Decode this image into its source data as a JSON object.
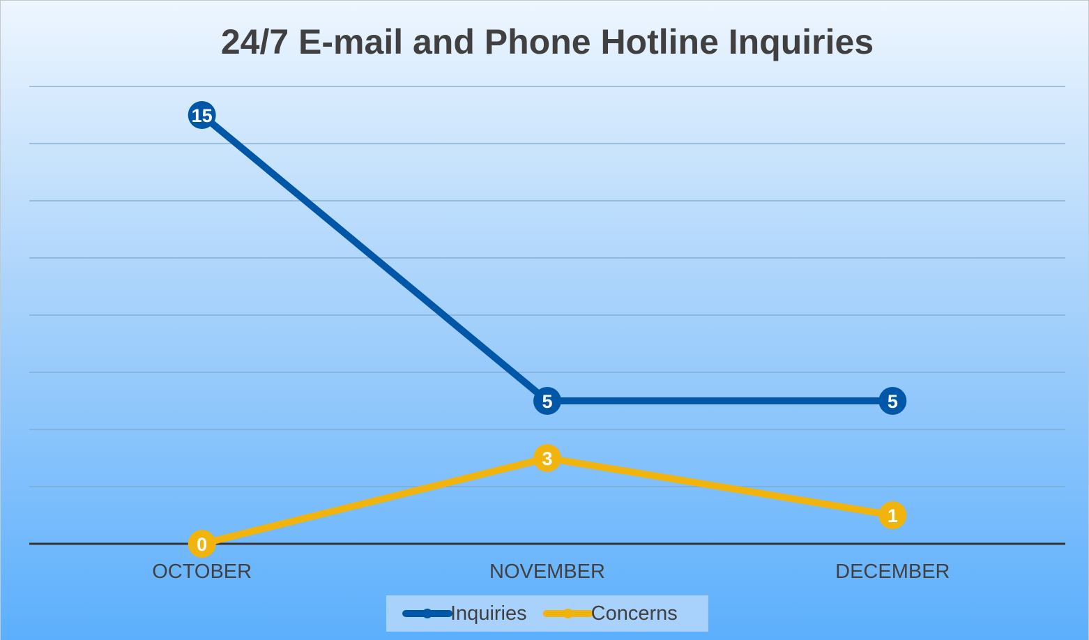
{
  "chart_data": {
    "type": "line",
    "title": "24/7 E-mail and Phone Hotline Inquiries",
    "categories": [
      "OCTOBER",
      "NOVEMBER",
      "DECEMBER"
    ],
    "series": [
      {
        "name": "Inquiries",
        "color": "#0057a8",
        "values": [
          15,
          5,
          5
        ]
      },
      {
        "name": "Concerns",
        "color": "#f0b40c",
        "values": [
          0,
          3,
          1
        ]
      }
    ],
    "ylim": [
      0,
      16
    ],
    "yticks": [
      0,
      2,
      4,
      6,
      8,
      10,
      12,
      14,
      16
    ],
    "grid": true,
    "legend": "bottom"
  }
}
